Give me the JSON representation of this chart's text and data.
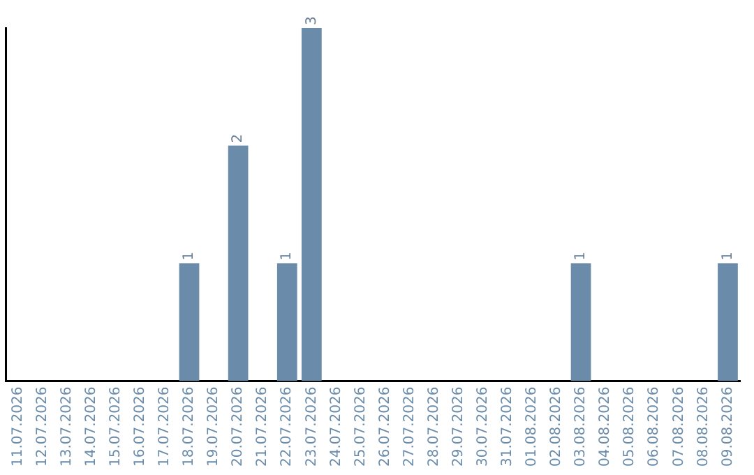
{
  "chart_data": {
    "type": "bar",
    "categories": [
      "11.07.2026",
      "12.07.2026",
      "13.07.2026",
      "14.07.2026",
      "15.07.2026",
      "16.07.2026",
      "17.07.2026",
      "18.07.2026",
      "19.07.2026",
      "20.07.2026",
      "21.07.2026",
      "22.07.2026",
      "23.07.2026",
      "24.07.2026",
      "25.07.2026",
      "26.07.2026",
      "27.07.2026",
      "28.07.2026",
      "29.07.2026",
      "30.07.2026",
      "31.07.2026",
      "01.08.2026",
      "02.08.2026",
      "03.08.2026",
      "04.08.2026",
      "05.08.2026",
      "06.08.2026",
      "07.08.2026",
      "08.08.2026",
      "09.08.2026"
    ],
    "values": [
      0,
      0,
      0,
      0,
      0,
      0,
      0,
      1,
      0,
      2,
      0,
      1,
      3,
      0,
      0,
      0,
      0,
      0,
      0,
      0,
      0,
      0,
      0,
      1,
      0,
      0,
      0,
      0,
      0,
      1
    ],
    "value_labels": [
      null,
      null,
      null,
      null,
      null,
      null,
      null,
      "1",
      null,
      "2",
      null,
      "1",
      "3",
      null,
      null,
      null,
      null,
      null,
      null,
      null,
      null,
      null,
      null,
      "1",
      null,
      null,
      null,
      null,
      null,
      "1"
    ],
    "color": "#6a8caa",
    "grid": false,
    "legend": false,
    "tick_labels": "x"
  }
}
